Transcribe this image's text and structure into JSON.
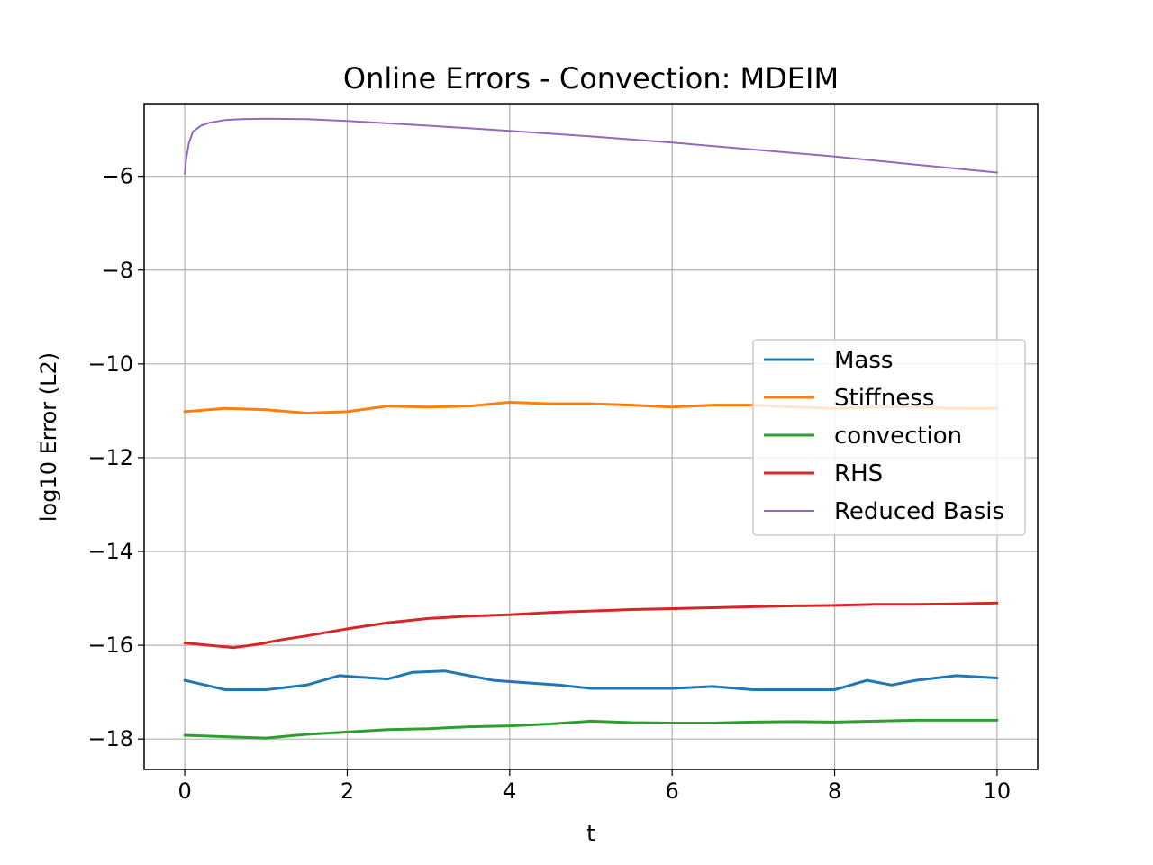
{
  "chart_data": {
    "type": "line",
    "title": "Online Errors - Convection: MDEIM",
    "xlabel": "t",
    "ylabel": "log10 Error (L2)",
    "xlim": [
      -0.5,
      10.5
    ],
    "ylim": [
      -18.65,
      -4.45
    ],
    "xticks": [
      0,
      2,
      4,
      6,
      8,
      10
    ],
    "yticks": [
      -18,
      -16,
      -14,
      -12,
      -10,
      -8,
      -6
    ],
    "xtick_labels": [
      "0",
      "2",
      "4",
      "6",
      "8",
      "10"
    ],
    "ytick_labels": [
      "−18",
      "−16",
      "−14",
      "−12",
      "−10",
      "−8",
      "−6"
    ],
    "grid": true,
    "legend_position": "center-right",
    "series": [
      {
        "name": "Mass",
        "color": "#1f77b4",
        "x": [
          0,
          0.5,
          1,
          1.5,
          1.9,
          2.3,
          2.5,
          2.8,
          3.2,
          3.5,
          3.8,
          4.2,
          4.6,
          5,
          5.5,
          6,
          6.5,
          7,
          7.5,
          8,
          8.4,
          8.7,
          9,
          9.5,
          10
        ],
        "y": [
          -16.75,
          -16.95,
          -16.95,
          -16.85,
          -16.65,
          -16.7,
          -16.72,
          -16.58,
          -16.55,
          -16.65,
          -16.75,
          -16.8,
          -16.85,
          -16.92,
          -16.92,
          -16.92,
          -16.88,
          -16.95,
          -16.95,
          -16.95,
          -16.75,
          -16.85,
          -16.75,
          -16.65,
          -16.7
        ]
      },
      {
        "name": "Stiffness",
        "color": "#ff7f0e",
        "x": [
          0,
          0.5,
          1,
          1.5,
          2,
          2.5,
          3,
          3.5,
          4,
          4.5,
          5,
          5.5,
          6,
          6.5,
          7,
          7.5,
          8,
          8.5,
          9,
          9.5,
          10
        ],
        "y": [
          -11.02,
          -10.95,
          -10.98,
          -11.05,
          -11.02,
          -10.9,
          -10.92,
          -10.9,
          -10.82,
          -10.85,
          -10.85,
          -10.88,
          -10.92,
          -10.88,
          -10.88,
          -10.92,
          -10.95,
          -10.92,
          -10.92,
          -10.95,
          -10.95
        ]
      },
      {
        "name": "convection",
        "color": "#2ca02c",
        "x": [
          0,
          0.5,
          1,
          1.5,
          2,
          2.5,
          3,
          3.5,
          4,
          4.5,
          5,
          5.5,
          6,
          6.5,
          7,
          7.5,
          8,
          8.5,
          9,
          9.5,
          10
        ],
        "y": [
          -17.92,
          -17.95,
          -17.98,
          -17.9,
          -17.85,
          -17.8,
          -17.78,
          -17.74,
          -17.72,
          -17.68,
          -17.62,
          -17.65,
          -17.66,
          -17.66,
          -17.64,
          -17.63,
          -17.64,
          -17.62,
          -17.6,
          -17.6,
          -17.6
        ]
      },
      {
        "name": "RHS",
        "color": "#d62728",
        "x": [
          0,
          0.3,
          0.6,
          0.9,
          1.2,
          1.5,
          2,
          2.5,
          3,
          3.5,
          4,
          4.5,
          5,
          5.5,
          6,
          6.5,
          7,
          7.5,
          8,
          8.5,
          9,
          9.5,
          10
        ],
        "y": [
          -15.95,
          -16.0,
          -16.05,
          -15.98,
          -15.88,
          -15.8,
          -15.65,
          -15.52,
          -15.43,
          -15.38,
          -15.35,
          -15.3,
          -15.27,
          -15.24,
          -15.22,
          -15.2,
          -15.18,
          -15.16,
          -15.15,
          -15.13,
          -15.13,
          -15.12,
          -15.1
        ]
      },
      {
        "name": "Reduced Basis",
        "color": "#9467bd",
        "x": [
          0,
          0.02,
          0.05,
          0.1,
          0.2,
          0.3,
          0.5,
          0.7,
          1,
          1.5,
          2,
          3,
          4,
          5,
          6,
          7,
          8,
          9,
          10
        ],
        "y": [
          -5.95,
          -5.6,
          -5.3,
          -5.05,
          -4.92,
          -4.86,
          -4.8,
          -4.78,
          -4.77,
          -4.78,
          -4.82,
          -4.92,
          -5.03,
          -5.15,
          -5.28,
          -5.43,
          -5.58,
          -5.75,
          -5.92
        ]
      }
    ]
  }
}
